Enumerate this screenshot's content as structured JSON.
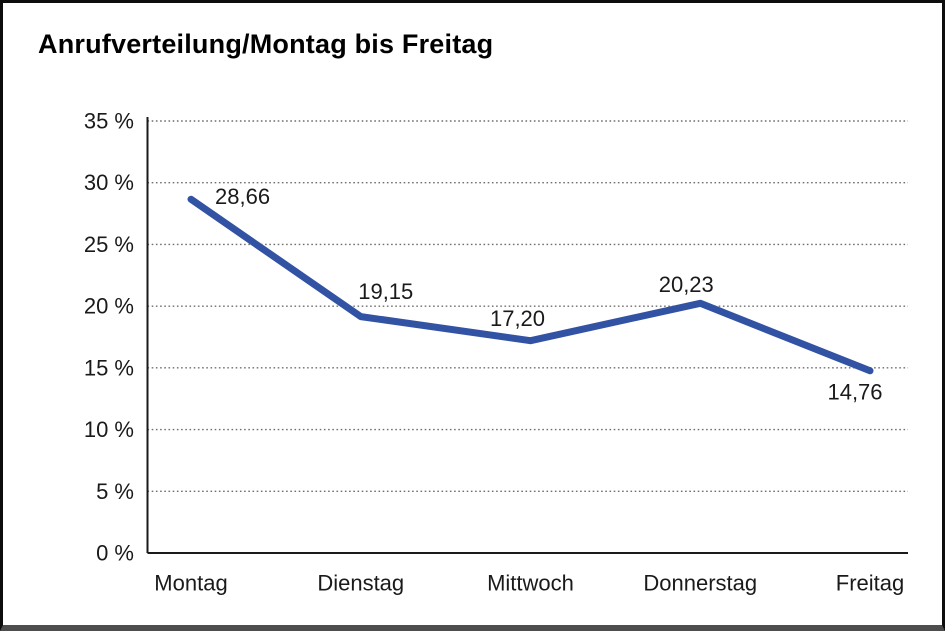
{
  "title": "Anrufverteilung/Montag bis Freitag",
  "chart_data": {
    "type": "line",
    "title": "Anrufverteilung/Montag bis Freitag",
    "categories": [
      "Montag",
      "Dienstag",
      "Mittwoch",
      "Donnerstag",
      "Freitag"
    ],
    "values": [
      28.66,
      19.15,
      17.2,
      20.23,
      14.76
    ],
    "point_labels": [
      "28,66",
      "19,15",
      "17,20",
      "20,23",
      "14,76"
    ],
    "series_name": "Anrufverteilung",
    "xlabel": "",
    "ylabel": "",
    "ylim": [
      0,
      35
    ],
    "ytick_step": 5,
    "ytick_labels": [
      "0 %",
      "5 %",
      "10 %",
      "15 %",
      "20 %",
      "25 %",
      "30 %",
      "35 %"
    ],
    "grid": "horizontal-dotted",
    "legend": "none",
    "line_color": "#3252a3",
    "axis_color": "#1a1a1a",
    "gridline_color": "#6e6e6e",
    "label_color": "#1a1a1a"
  }
}
